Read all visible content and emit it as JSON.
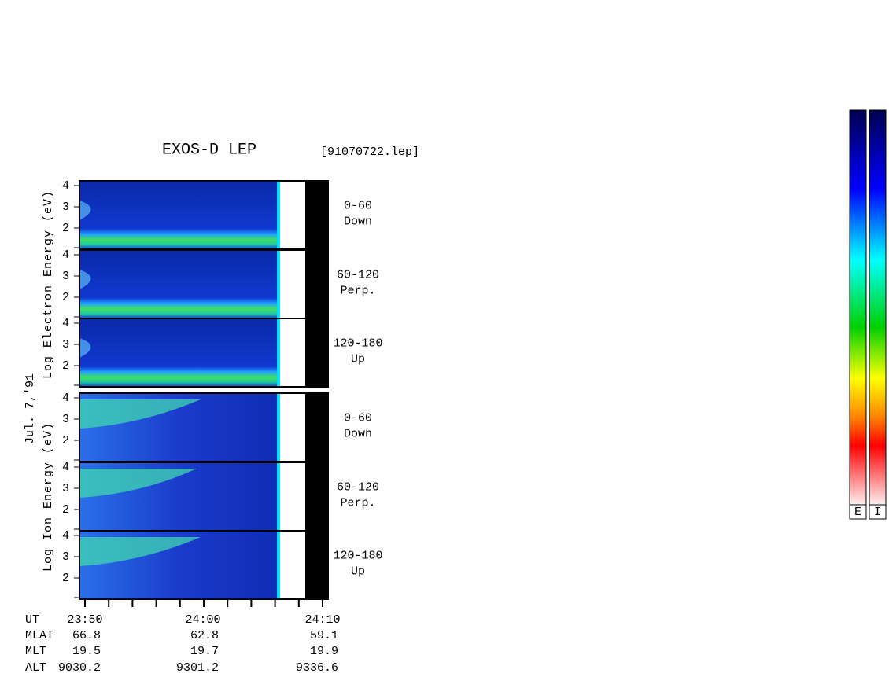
{
  "header": {
    "title": "EXOS-D LEP",
    "file": "[91070722.lep]"
  },
  "date": "Jul. 7,'91",
  "axis_labels": {
    "electron": "Log Electron Energy (eV)",
    "ion": "Log Ion Energy (eV)"
  },
  "y_ticks": [
    "4",
    "3",
    "2"
  ],
  "panels": [
    {
      "range": "0-60",
      "direction": "Down"
    },
    {
      "range": "60-120",
      "direction": "Perp."
    },
    {
      "range": "120-180",
      "direction": "Up"
    },
    {
      "range": "0-60",
      "direction": "Down"
    },
    {
      "range": "60-120",
      "direction": "Perp."
    },
    {
      "range": "120-180",
      "direction": "Up"
    }
  ],
  "table": {
    "rows": [
      [
        "UT",
        "23:50",
        "24:00",
        "24:10"
      ],
      [
        "MLAT",
        "66.8",
        "62.8",
        "59.1"
      ],
      [
        "MLT",
        "19.5",
        "19.7",
        "19.9"
      ],
      [
        "ALT",
        "9030.2",
        "9301.2",
        "9336.6"
      ]
    ]
  },
  "colorbars": [
    "E",
    "I"
  ]
}
